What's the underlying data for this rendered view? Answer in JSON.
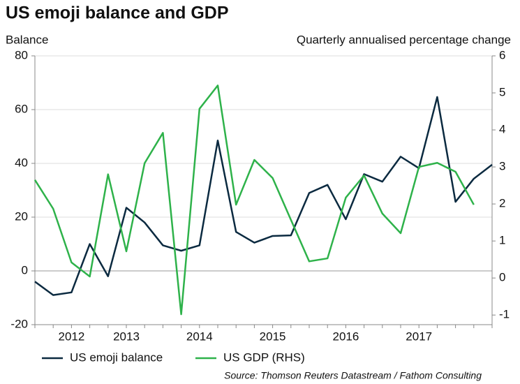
{
  "chart_data": {
    "type": "line",
    "title": "US emoji balance and GDP",
    "y_label": "Balance",
    "y2_label": "Quarterly annualised percentage change",
    "source": "Source: Thomson Reuters Datastream / Fathom Consulting",
    "categories": [
      null,
      null,
      "2012",
      null,
      null,
      "2013",
      null,
      null,
      null,
      "2014",
      null,
      null,
      null,
      "2015",
      null,
      null,
      null,
      "2016",
      null,
      null,
      null,
      "2017",
      null,
      null,
      null,
      null
    ],
    "series": [
      {
        "name": "US emoji balance",
        "color": "#0b2a40",
        "axis": "y",
        "values": [
          -4,
          -9,
          -8,
          10,
          -2,
          23.5,
          18,
          9.5,
          7.5,
          9.5,
          48.5,
          14.5,
          10.5,
          13,
          13.2,
          29,
          32,
          19.2,
          36,
          33.2,
          42.5,
          38.2,
          64.7,
          25.7,
          34.3,
          39.5
        ]
      },
      {
        "name": "US GDP (RHS)",
        "color": "#2eb24a",
        "axis": "y2",
        "values": [
          2.65,
          1.87,
          0.42,
          0.04,
          2.8,
          0.72,
          3.1,
          3.92,
          -0.98,
          4.57,
          5.2,
          1.98,
          3.19,
          2.7,
          1.57,
          0.45,
          0.53,
          2.17,
          2.77,
          1.74,
          1.21,
          3.0,
          3.11,
          2.87,
          1.98,
          null
        ]
      }
    ],
    "ylim": [
      -20,
      80
    ],
    "yticks": [
      -20,
      0,
      20,
      40,
      60,
      80
    ],
    "y2lim": [
      -1.26,
      6
    ],
    "y2ticks": [
      -1,
      0,
      1,
      2,
      3,
      4,
      5,
      6
    ],
    "grid": true,
    "legend": "bottom"
  }
}
